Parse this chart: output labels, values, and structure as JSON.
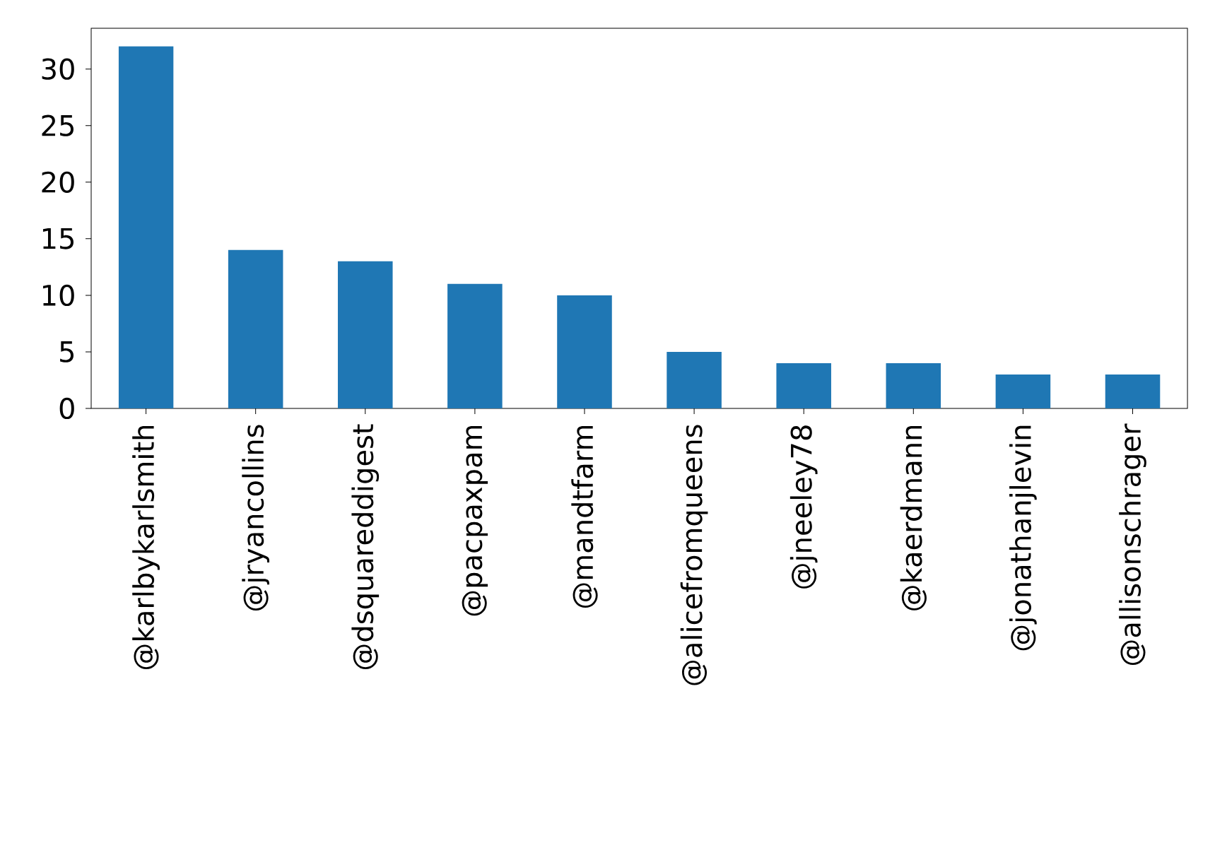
{
  "chart_data": {
    "type": "bar",
    "categories": [
      "@karlbykarlsmith",
      "@jryancollins",
      "@dsquareddigest",
      "@pacpaxpam",
      "@mandtfarm",
      "@alicefromqueens",
      "@jneeley78",
      "@kaerdmann",
      "@jonathanjlevin",
      "@allisonschrager"
    ],
    "values": [
      32,
      14,
      13,
      11,
      10,
      5,
      4,
      4,
      3,
      3
    ],
    "color": "#1f77b4",
    "ylim": [
      0,
      33.6
    ],
    "yticks": [
      0,
      5,
      10,
      15,
      20,
      25,
      30
    ]
  }
}
